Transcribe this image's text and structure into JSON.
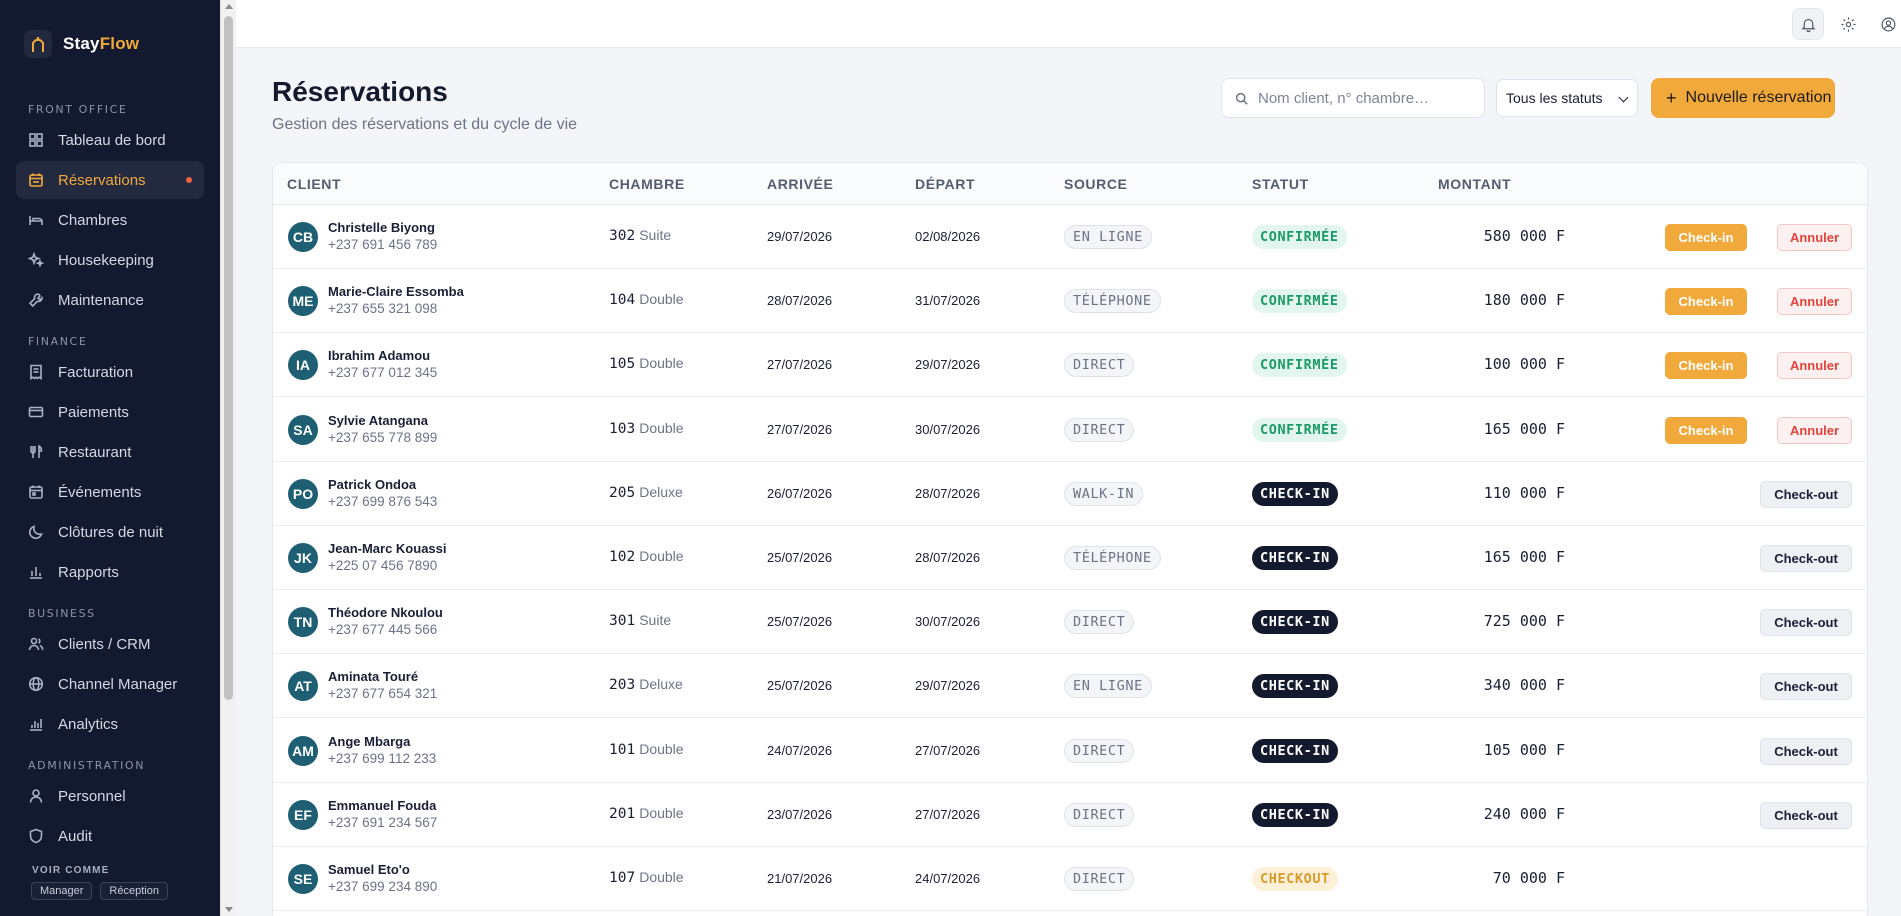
{
  "brand": {
    "name_part1": "Stay",
    "name_part2": "Flow"
  },
  "sidebar": {
    "sections": [
      {
        "label": "FRONT OFFICE",
        "items": [
          {
            "label": "Tableau de bord",
            "icon": "dashboard-icon"
          },
          {
            "label": "Réservations",
            "icon": "calendar-icon",
            "active": true,
            "notification": true
          },
          {
            "label": "Chambres",
            "icon": "bed-icon"
          },
          {
            "label": "Housekeeping",
            "icon": "sparkle-icon"
          },
          {
            "label": "Maintenance",
            "icon": "wrench-icon"
          }
        ]
      },
      {
        "label": "FINANCE",
        "items": [
          {
            "label": "Facturation",
            "icon": "receipt-icon"
          },
          {
            "label": "Paiements",
            "icon": "credit-card-icon"
          },
          {
            "label": "Restaurant",
            "icon": "utensils-icon"
          },
          {
            "label": "Événements",
            "icon": "calendar-event-icon"
          },
          {
            "label": "Clôtures de nuit",
            "icon": "moon-icon"
          },
          {
            "label": "Rapports",
            "icon": "bar-chart-icon"
          }
        ]
      },
      {
        "label": "BUSINESS",
        "items": [
          {
            "label": "Clients / CRM",
            "icon": "users-icon"
          },
          {
            "label": "Channel Manager",
            "icon": "globe-icon"
          },
          {
            "label": "Analytics",
            "icon": "analytics-icon"
          }
        ]
      },
      {
        "label": "ADMINISTRATION",
        "items": [
          {
            "label": "Personnel",
            "icon": "person-icon"
          },
          {
            "label": "Audit",
            "icon": "shield-icon"
          }
        ]
      }
    ],
    "voir_comme": {
      "label": "VOIR COMME",
      "roles": [
        "Manager",
        "Réception"
      ]
    }
  },
  "header": {
    "title": "Réservations",
    "subtitle": "Gestion des réservations et du cycle de vie",
    "search_placeholder": "Nom client, n° chambre…",
    "status_filter": "Tous les statuts",
    "new_button": "Nouvelle réservation"
  },
  "table": {
    "columns": [
      "CLIENT",
      "CHAMBRE",
      "ARRIVÉE",
      "DÉPART",
      "SOURCE",
      "STATUT",
      "MONTANT"
    ],
    "rows": [
      {
        "initials": "CB",
        "name": "Christelle Biyong",
        "phone": "+237 691 456 789",
        "room": "302",
        "room_type": "Suite",
        "arrival": "29/07/2026",
        "departure": "02/08/2026",
        "source": "EN LIGNE",
        "status": "CONFIRMÉE",
        "amount": "580 000 F",
        "actions": [
          "Check-in",
          "Annuler"
        ]
      },
      {
        "initials": "ME",
        "name": "Marie-Claire Essomba",
        "phone": "+237 655 321 098",
        "room": "104",
        "room_type": "Double",
        "arrival": "28/07/2026",
        "departure": "31/07/2026",
        "source": "TÉLÉPHONE",
        "status": "CONFIRMÉE",
        "amount": "180 000 F",
        "actions": [
          "Check-in",
          "Annuler"
        ]
      },
      {
        "initials": "IA",
        "name": "Ibrahim Adamou",
        "phone": "+237 677 012 345",
        "room": "105",
        "room_type": "Double",
        "arrival": "27/07/2026",
        "departure": "29/07/2026",
        "source": "DIRECT",
        "status": "CONFIRMÉE",
        "amount": "100 000 F",
        "actions": [
          "Check-in",
          "Annuler"
        ]
      },
      {
        "initials": "SA",
        "name": "Sylvie Atangana",
        "phone": "+237 655 778 899",
        "room": "103",
        "room_type": "Double",
        "arrival": "27/07/2026",
        "departure": "30/07/2026",
        "source": "DIRECT",
        "status": "CONFIRMÉE",
        "amount": "165 000 F",
        "actions": [
          "Check-in",
          "Annuler"
        ]
      },
      {
        "initials": "PO",
        "name": "Patrick Ondoa",
        "phone": "+237 699 876 543",
        "room": "205",
        "room_type": "Deluxe",
        "arrival": "26/07/2026",
        "departure": "28/07/2026",
        "source": "WALK-IN",
        "status": "CHECK-IN",
        "amount": "110 000 F",
        "actions": [
          "Check-out"
        ]
      },
      {
        "initials": "JK",
        "name": "Jean-Marc Kouassi",
        "phone": "+225 07 456 7890",
        "room": "102",
        "room_type": "Double",
        "arrival": "25/07/2026",
        "departure": "28/07/2026",
        "source": "TÉLÉPHONE",
        "status": "CHECK-IN",
        "amount": "165 000 F",
        "actions": [
          "Check-out"
        ]
      },
      {
        "initials": "TN",
        "name": "Théodore Nkoulou",
        "phone": "+237 677 445 566",
        "room": "301",
        "room_type": "Suite",
        "arrival": "25/07/2026",
        "departure": "30/07/2026",
        "source": "DIRECT",
        "status": "CHECK-IN",
        "amount": "725 000 F",
        "actions": [
          "Check-out"
        ]
      },
      {
        "initials": "AT",
        "name": "Aminata Touré",
        "phone": "+237 677 654 321",
        "room": "203",
        "room_type": "Deluxe",
        "arrival": "25/07/2026",
        "departure": "29/07/2026",
        "source": "EN LIGNE",
        "status": "CHECK-IN",
        "amount": "340 000 F",
        "actions": [
          "Check-out"
        ]
      },
      {
        "initials": "AM",
        "name": "Ange Mbarga",
        "phone": "+237 699 112 233",
        "room": "101",
        "room_type": "Double",
        "arrival": "24/07/2026",
        "departure": "27/07/2026",
        "source": "DIRECT",
        "status": "CHECK-IN",
        "amount": "105 000 F",
        "actions": [
          "Check-out"
        ]
      },
      {
        "initials": "EF",
        "name": "Emmanuel Fouda",
        "phone": "+237 691 234 567",
        "room": "201",
        "room_type": "Double",
        "arrival": "23/07/2026",
        "departure": "27/07/2026",
        "source": "DIRECT",
        "status": "CHECK-IN",
        "amount": "240 000 F",
        "actions": [
          "Check-out"
        ]
      },
      {
        "initials": "SE",
        "name": "Samuel Eto'o",
        "phone": "+237 699 234 890",
        "room": "107",
        "room_type": "Double",
        "arrival": "21/07/2026",
        "departure": "24/07/2026",
        "source": "DIRECT",
        "status": "CHECKOUT",
        "amount": "70 000 F",
        "actions": []
      }
    ]
  },
  "colors": {
    "accent": "#f2a93b",
    "sidebar_bg": "#13192e",
    "confirmed": "#1c9a6b",
    "danger": "#e0433a"
  }
}
